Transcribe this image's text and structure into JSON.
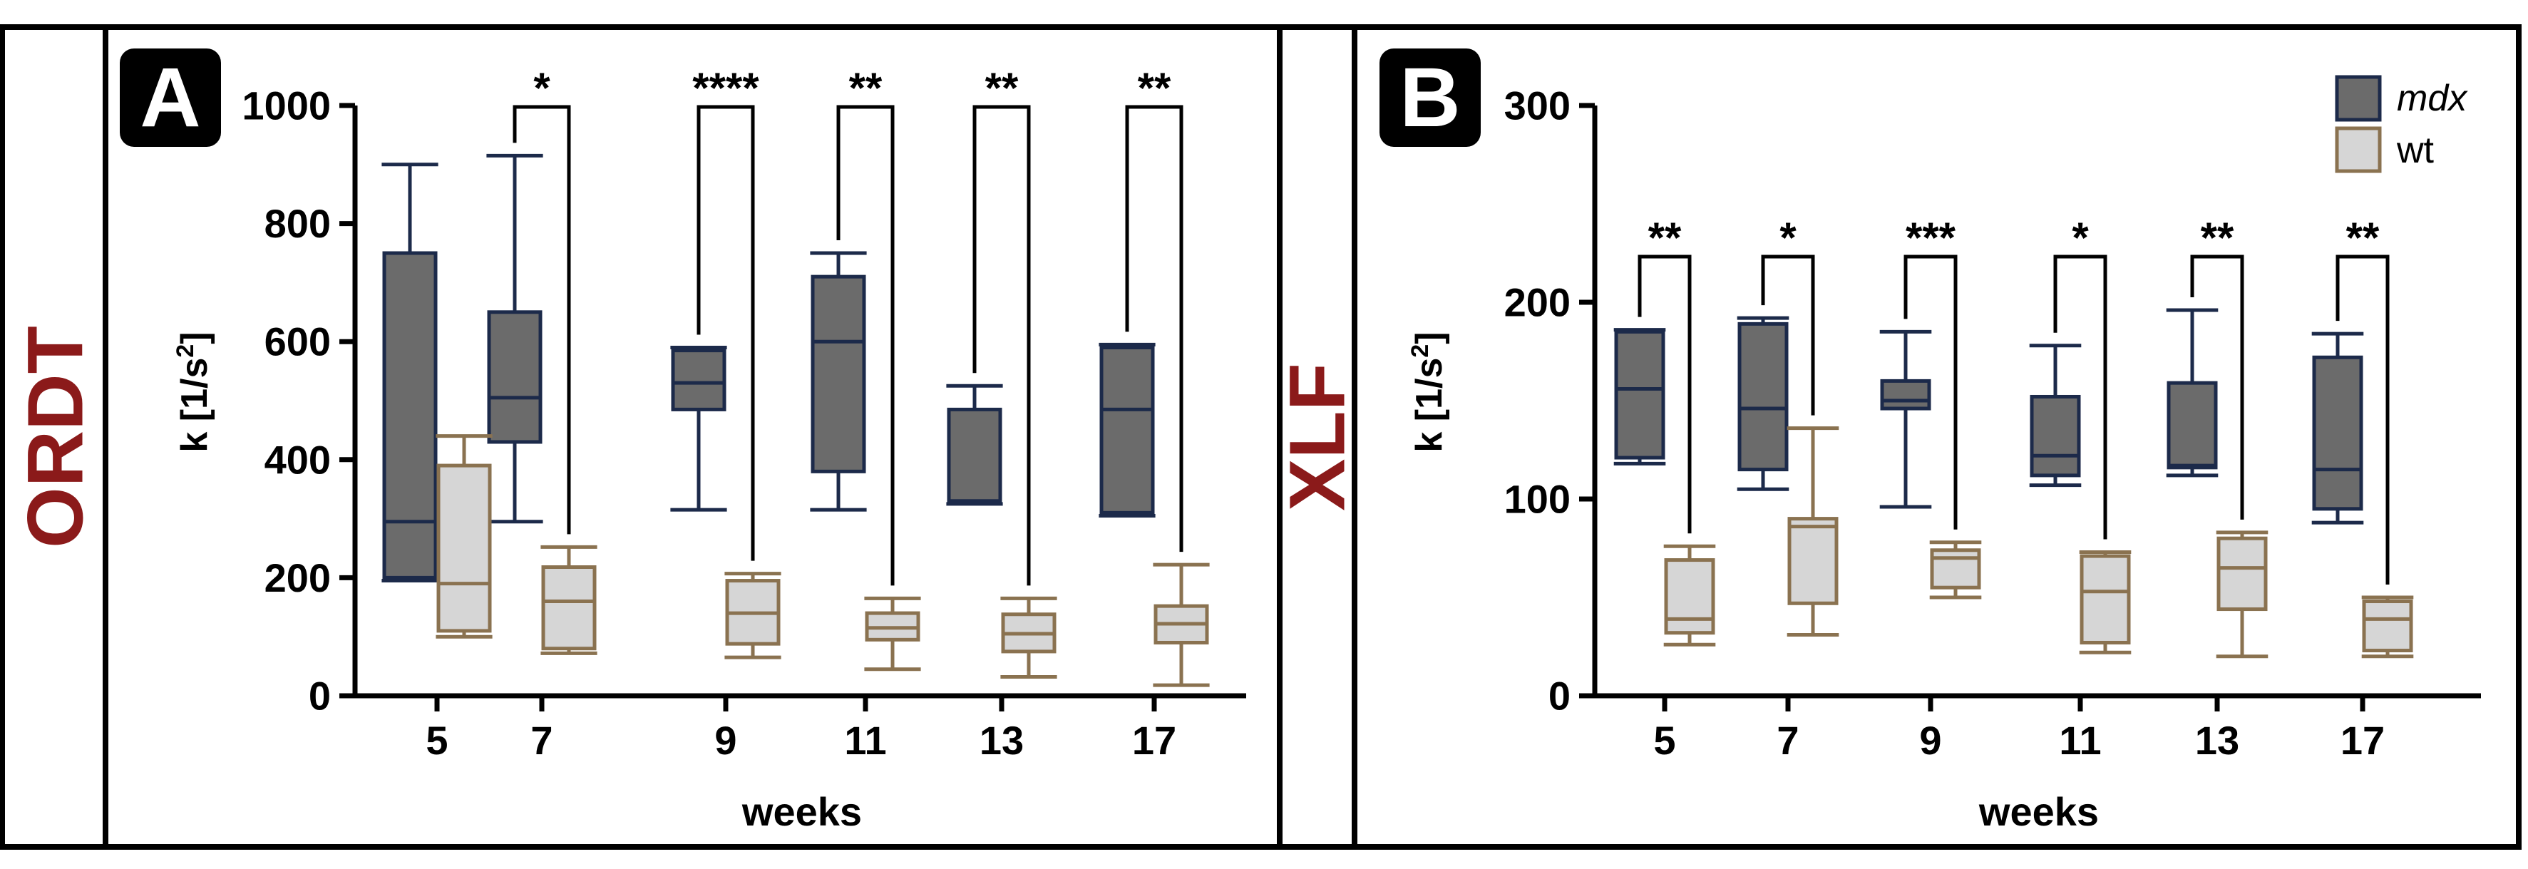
{
  "colors": {
    "mdx_fill": "#6b6b6b",
    "mdx_stroke": "#1c2a4a",
    "wt_fill": "#d6d6d6",
    "wt_stroke": "#8a7250",
    "side_label": "#8b1a1a",
    "frame": "#000000"
  },
  "legend": {
    "mdx": "mdx",
    "wt": "wt"
  },
  "chart_data": [
    {
      "panel": "A",
      "side_label": "ORDT",
      "type": "box",
      "xlabel": "weeks",
      "ylabel_base": "k [1/s",
      "ylabel_sup": "2",
      "ylabel_close": "]",
      "ylim": [
        0,
        1000
      ],
      "yticks": [
        "0",
        "200",
        "400",
        "600",
        "800",
        "1000"
      ],
      "categories": [
        "5",
        "7",
        "9",
        "11",
        "13",
        "17"
      ],
      "significance": [
        "",
        "*",
        "****",
        "**",
        "**",
        "**"
      ],
      "series": [
        {
          "name": "mdx",
          "boxes": [
            {
              "min": 195,
              "q1": 200,
              "median": 295,
              "q3": 750,
              "max": 900
            },
            {
              "min": 295,
              "q1": 430,
              "median": 505,
              "q3": 650,
              "max": 915
            },
            {
              "min": 315,
              "q1": 485,
              "median": 530,
              "q3": 585,
              "max": 590
            },
            {
              "min": 315,
              "q1": 380,
              "median": 600,
              "q3": 710,
              "max": 750
            },
            {
              "min": 325,
              "q1": 328,
              "median": 330,
              "q3": 485,
              "max": 525
            },
            {
              "min": 305,
              "q1": 310,
              "median": 485,
              "q3": 590,
              "max": 595
            }
          ]
        },
        {
          "name": "wt",
          "boxes": [
            {
              "min": 100,
              "q1": 110,
              "median": 190,
              "q3": 390,
              "max": 440
            },
            {
              "min": 72,
              "q1": 80,
              "median": 160,
              "q3": 218,
              "max": 252
            },
            {
              "min": 65,
              "q1": 88,
              "median": 140,
              "q3": 195,
              "max": 207
            },
            {
              "min": 45,
              "q1": 95,
              "median": 115,
              "q3": 140,
              "max": 165
            },
            {
              "min": 32,
              "q1": 75,
              "median": 105,
              "q3": 138,
              "max": 165
            },
            {
              "min": 18,
              "q1": 90,
              "median": 122,
              "q3": 152,
              "max": 222
            }
          ]
        }
      ]
    },
    {
      "panel": "B",
      "side_label": "XLF",
      "type": "box",
      "xlabel": "weeks",
      "ylabel_base": "k [1/s",
      "ylabel_sup": "2",
      "ylabel_close": "]",
      "ylim": [
        0,
        300
      ],
      "yticks": [
        "0",
        "100",
        "200",
        "300"
      ],
      "categories": [
        "5",
        "7",
        "9",
        "11",
        "13",
        "17"
      ],
      "significance": [
        "**",
        "*",
        "***",
        "*",
        "**",
        "**"
      ],
      "series": [
        {
          "name": "mdx",
          "boxes": [
            {
              "min": 118,
              "q1": 121,
              "median": 156,
              "q3": 185,
              "max": 186
            },
            {
              "min": 105,
              "q1": 115,
              "median": 146,
              "q3": 189,
              "max": 192
            },
            {
              "min": 96,
              "q1": 146,
              "median": 150,
              "q3": 160,
              "max": 185
            },
            {
              "min": 107,
              "q1": 112,
              "median": 122,
              "q3": 152,
              "max": 178
            },
            {
              "min": 112,
              "q1": 116,
              "median": 117,
              "q3": 159,
              "max": 196
            },
            {
              "min": 88,
              "q1": 95,
              "median": 115,
              "q3": 172,
              "max": 184
            }
          ]
        },
        {
          "name": "wt",
          "boxes": [
            {
              "min": 26,
              "q1": 32,
              "median": 39,
              "q3": 69,
              "max": 76
            },
            {
              "min": 31,
              "q1": 47,
              "median": 86,
              "q3": 90,
              "max": 136
            },
            {
              "min": 50,
              "q1": 55,
              "median": 70,
              "q3": 74,
              "max": 78
            },
            {
              "min": 22,
              "q1": 27,
              "median": 53,
              "q3": 71,
              "max": 73
            },
            {
              "min": 20,
              "q1": 44,
              "median": 65,
              "q3": 80,
              "max": 83
            },
            {
              "min": 20,
              "q1": 23,
              "median": 39,
              "q3": 48,
              "max": 50
            }
          ]
        }
      ]
    }
  ]
}
